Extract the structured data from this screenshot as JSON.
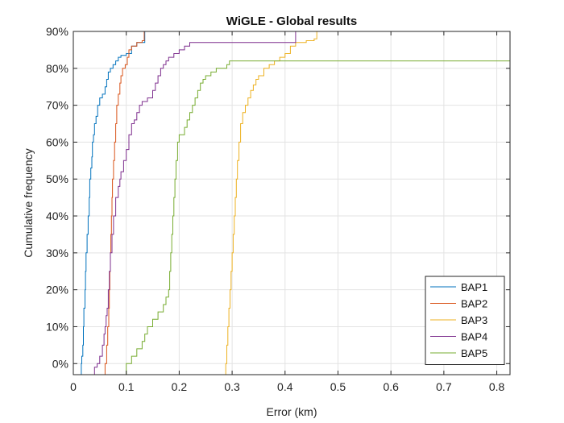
{
  "chart_data": {
    "type": "line",
    "title": "WiGLE - Global results",
    "xlabel": "Error (km)",
    "ylabel": "Cumulative frequency",
    "xlim": [
      0,
      0.825
    ],
    "ylim": [
      -0.03,
      0.9
    ],
    "grid": true,
    "legend_position": "bottom-right",
    "x_ticks": [
      {
        "value": 0,
        "label": "0"
      },
      {
        "value": 0.1,
        "label": "0.1"
      },
      {
        "value": 0.2,
        "label": "0.2"
      },
      {
        "value": 0.3,
        "label": "0.3"
      },
      {
        "value": 0.4,
        "label": "0.4"
      },
      {
        "value": 0.5,
        "label": "0.5"
      },
      {
        "value": 0.6,
        "label": "0.6"
      },
      {
        "value": 0.7,
        "label": "0.7"
      },
      {
        "value": 0.8,
        "label": "0.8"
      }
    ],
    "y_ticks": [
      {
        "value": 0,
        "label": "0%"
      },
      {
        "value": 0.1,
        "label": "10%"
      },
      {
        "value": 0.2,
        "label": "20%"
      },
      {
        "value": 0.3,
        "label": "30%"
      },
      {
        "value": 0.4,
        "label": "40%"
      },
      {
        "value": 0.5,
        "label": "50%"
      },
      {
        "value": 0.6,
        "label": "60%"
      },
      {
        "value": 0.7,
        "label": "70%"
      },
      {
        "value": 0.8,
        "label": "80%"
      },
      {
        "value": 0.9,
        "label": "90%"
      }
    ],
    "series": [
      {
        "name": "BAP1",
        "color": "#0072BD",
        "points": [
          [
            0.014,
            -0.03
          ],
          [
            0.015,
            0.0
          ],
          [
            0.016,
            0.02
          ],
          [
            0.018,
            0.05
          ],
          [
            0.019,
            0.1
          ],
          [
            0.02,
            0.15
          ],
          [
            0.022,
            0.2
          ],
          [
            0.023,
            0.25
          ],
          [
            0.024,
            0.3
          ],
          [
            0.026,
            0.35
          ],
          [
            0.028,
            0.4
          ],
          [
            0.03,
            0.45
          ],
          [
            0.031,
            0.5
          ],
          [
            0.033,
            0.53
          ],
          [
            0.035,
            0.56
          ],
          [
            0.036,
            0.6
          ],
          [
            0.038,
            0.62
          ],
          [
            0.04,
            0.65
          ],
          [
            0.043,
            0.67
          ],
          [
            0.046,
            0.7
          ],
          [
            0.05,
            0.72
          ],
          [
            0.055,
            0.73
          ],
          [
            0.06,
            0.75
          ],
          [
            0.063,
            0.77
          ],
          [
            0.066,
            0.79
          ],
          [
            0.07,
            0.8
          ],
          [
            0.075,
            0.81
          ],
          [
            0.08,
            0.82
          ],
          [
            0.085,
            0.83
          ],
          [
            0.09,
            0.835
          ],
          [
            0.1,
            0.84
          ],
          [
            0.11,
            0.86
          ],
          [
            0.12,
            0.87
          ],
          [
            0.13,
            0.87
          ],
          [
            0.135,
            0.9
          ]
        ]
      },
      {
        "name": "BAP2",
        "color": "#D95319",
        "points": [
          [
            0.059,
            -0.03
          ],
          [
            0.06,
            0.0
          ],
          [
            0.063,
            0.05
          ],
          [
            0.065,
            0.1
          ],
          [
            0.067,
            0.15
          ],
          [
            0.068,
            0.2
          ],
          [
            0.069,
            0.25
          ],
          [
            0.07,
            0.3
          ],
          [
            0.071,
            0.35
          ],
          [
            0.072,
            0.4
          ],
          [
            0.073,
            0.45
          ],
          [
            0.074,
            0.5
          ],
          [
            0.076,
            0.55
          ],
          [
            0.078,
            0.6
          ],
          [
            0.08,
            0.65
          ],
          [
            0.082,
            0.7
          ],
          [
            0.085,
            0.73
          ],
          [
            0.088,
            0.76
          ],
          [
            0.09,
            0.78
          ],
          [
            0.093,
            0.8
          ],
          [
            0.098,
            0.81
          ],
          [
            0.102,
            0.83
          ],
          [
            0.105,
            0.85
          ],
          [
            0.11,
            0.86
          ],
          [
            0.12,
            0.87
          ],
          [
            0.13,
            0.875
          ],
          [
            0.134,
            0.9
          ]
        ]
      },
      {
        "name": "BAP3",
        "color": "#EDB120",
        "points": [
          [
            0.287,
            -0.03
          ],
          [
            0.288,
            0.0
          ],
          [
            0.29,
            0.05
          ],
          [
            0.292,
            0.1
          ],
          [
            0.294,
            0.15
          ],
          [
            0.296,
            0.2
          ],
          [
            0.298,
            0.25
          ],
          [
            0.3,
            0.3
          ],
          [
            0.302,
            0.35
          ],
          [
            0.304,
            0.4
          ],
          [
            0.306,
            0.45
          ],
          [
            0.308,
            0.5
          ],
          [
            0.31,
            0.55
          ],
          [
            0.313,
            0.6
          ],
          [
            0.316,
            0.65
          ],
          [
            0.32,
            0.68
          ],
          [
            0.325,
            0.7
          ],
          [
            0.33,
            0.72
          ],
          [
            0.335,
            0.74
          ],
          [
            0.34,
            0.755
          ],
          [
            0.345,
            0.77
          ],
          [
            0.35,
            0.78
          ],
          [
            0.36,
            0.8
          ],
          [
            0.37,
            0.81
          ],
          [
            0.38,
            0.82
          ],
          [
            0.39,
            0.83
          ],
          [
            0.4,
            0.84
          ],
          [
            0.41,
            0.86
          ],
          [
            0.42,
            0.87
          ],
          [
            0.44,
            0.875
          ],
          [
            0.455,
            0.88
          ],
          [
            0.46,
            0.9
          ]
        ]
      },
      {
        "name": "BAP4",
        "color": "#7E2F8E",
        "points": [
          [
            0.038,
            -0.03
          ],
          [
            0.04,
            -0.01
          ],
          [
            0.045,
            0.0
          ],
          [
            0.05,
            0.02
          ],
          [
            0.055,
            0.05
          ],
          [
            0.058,
            0.08
          ],
          [
            0.06,
            0.1
          ],
          [
            0.062,
            0.13
          ],
          [
            0.064,
            0.15
          ],
          [
            0.066,
            0.2
          ],
          [
            0.068,
            0.25
          ],
          [
            0.07,
            0.3
          ],
          [
            0.073,
            0.35
          ],
          [
            0.076,
            0.4
          ],
          [
            0.08,
            0.45
          ],
          [
            0.085,
            0.48
          ],
          [
            0.088,
            0.5
          ],
          [
            0.09,
            0.52
          ],
          [
            0.095,
            0.55
          ],
          [
            0.1,
            0.58
          ],
          [
            0.105,
            0.62
          ],
          [
            0.11,
            0.65
          ],
          [
            0.115,
            0.66
          ],
          [
            0.12,
            0.68
          ],
          [
            0.125,
            0.7
          ],
          [
            0.13,
            0.71
          ],
          [
            0.14,
            0.72
          ],
          [
            0.15,
            0.74
          ],
          [
            0.155,
            0.76
          ],
          [
            0.16,
            0.78
          ],
          [
            0.165,
            0.8
          ],
          [
            0.17,
            0.81
          ],
          [
            0.175,
            0.82
          ],
          [
            0.18,
            0.83
          ],
          [
            0.19,
            0.84
          ],
          [
            0.2,
            0.85
          ],
          [
            0.21,
            0.86
          ],
          [
            0.22,
            0.87
          ],
          [
            0.3,
            0.87
          ],
          [
            0.38,
            0.87
          ],
          [
            0.42,
            0.87
          ],
          [
            0.42,
            0.9
          ]
        ]
      },
      {
        "name": "BAP5",
        "color": "#77AC30",
        "points": [
          [
            0.095,
            -0.03
          ],
          [
            0.1,
            0.0
          ],
          [
            0.11,
            0.02
          ],
          [
            0.12,
            0.04
          ],
          [
            0.13,
            0.06
          ],
          [
            0.135,
            0.08
          ],
          [
            0.14,
            0.1
          ],
          [
            0.15,
            0.12
          ],
          [
            0.16,
            0.14
          ],
          [
            0.17,
            0.16
          ],
          [
            0.175,
            0.18
          ],
          [
            0.18,
            0.2
          ],
          [
            0.182,
            0.25
          ],
          [
            0.184,
            0.3
          ],
          [
            0.186,
            0.35
          ],
          [
            0.188,
            0.4
          ],
          [
            0.19,
            0.45
          ],
          [
            0.192,
            0.5
          ],
          [
            0.194,
            0.55
          ],
          [
            0.197,
            0.6
          ],
          [
            0.2,
            0.62
          ],
          [
            0.21,
            0.64
          ],
          [
            0.215,
            0.66
          ],
          [
            0.22,
            0.68
          ],
          [
            0.225,
            0.7
          ],
          [
            0.23,
            0.72
          ],
          [
            0.235,
            0.74
          ],
          [
            0.24,
            0.76
          ],
          [
            0.245,
            0.77
          ],
          [
            0.25,
            0.78
          ],
          [
            0.26,
            0.79
          ],
          [
            0.27,
            0.8
          ],
          [
            0.29,
            0.81
          ],
          [
            0.295,
            0.82
          ],
          [
            0.4,
            0.82
          ],
          [
            0.6,
            0.82
          ],
          [
            0.825,
            0.82
          ]
        ]
      }
    ]
  }
}
